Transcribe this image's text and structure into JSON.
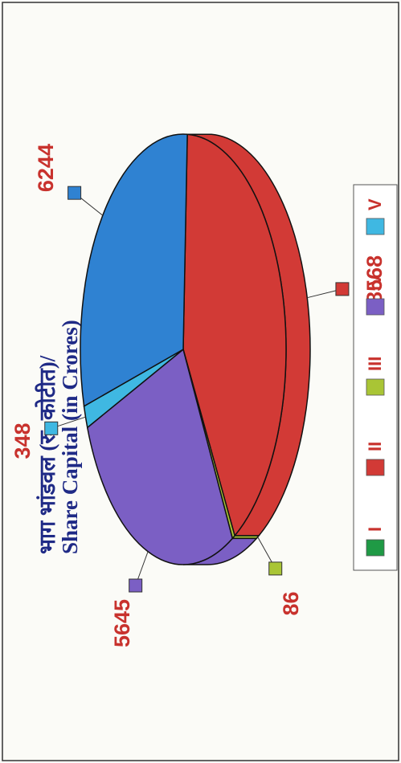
{
  "chart_data": {
    "type": "pie",
    "title_lines": [
      "भाग भांडवल (रु. कोटीत)/",
      "Share Capital (in Crores)"
    ],
    "values": [
      8568,
      86,
      5645,
      348,
      6244
    ],
    "colors": [
      "#d23a36",
      "#a9c535",
      "#7b5fc4",
      "#3fb8e2",
      "#2f82d2"
    ],
    "legend": [
      {
        "name": "I",
        "color": "#1f9a45"
      },
      {
        "name": "II",
        "color": "#d23a36"
      },
      {
        "name": "III",
        "color": "#a9c535"
      },
      {
        "name": "IV",
        "color": "#7b5fc4"
      },
      {
        "name": "V",
        "color": "#3fb8e2"
      }
    ]
  }
}
